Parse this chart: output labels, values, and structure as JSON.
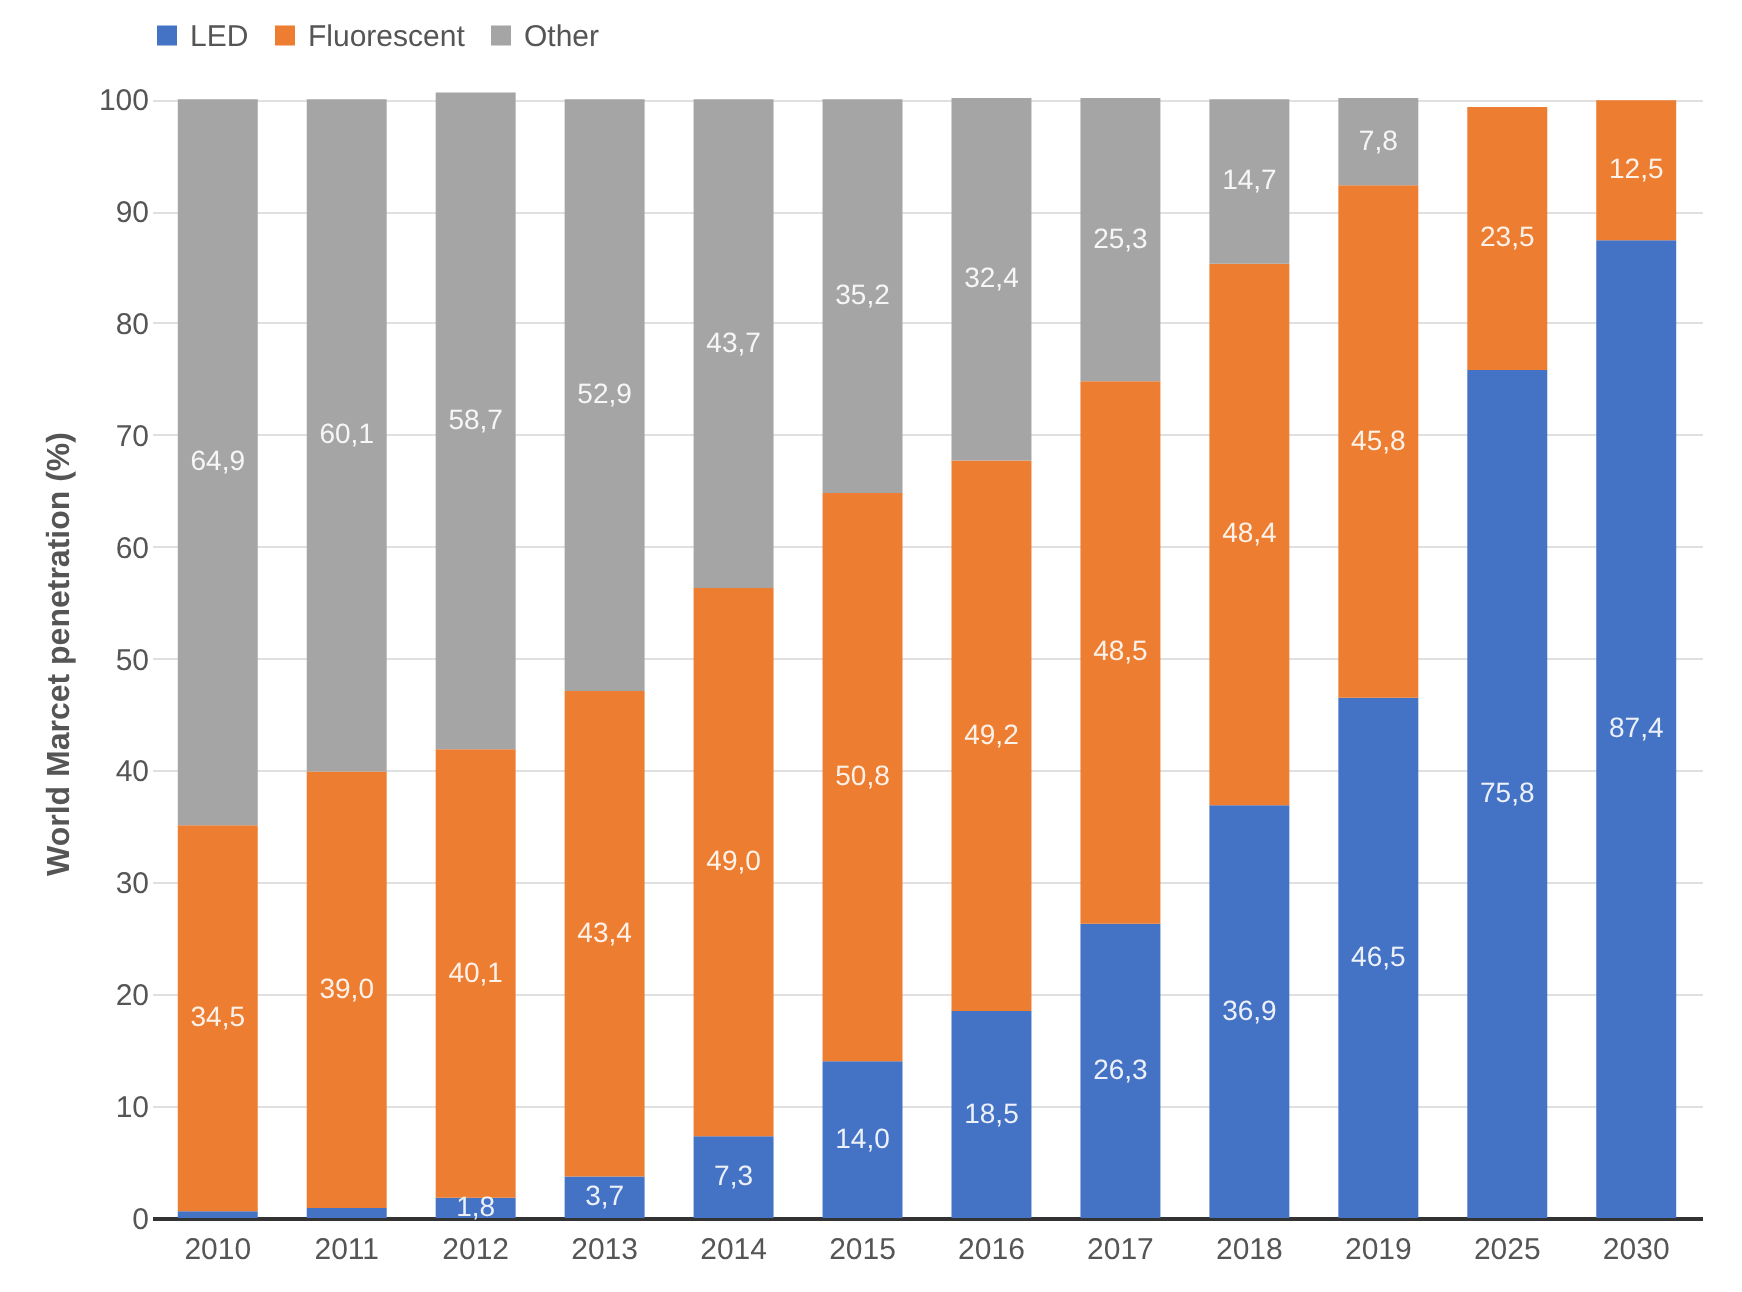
{
  "chart_data": {
    "type": "bar",
    "stacked": true,
    "ylabel": "World Marcet penetration (%)",
    "categories": [
      "2010",
      "2011",
      "2012",
      "2013",
      "2014",
      "2015",
      "2016",
      "2017",
      "2018",
      "2019",
      "2025",
      "2030"
    ],
    "series": [
      {
        "name": "LED",
        "color": "#4472c4",
        "values": [
          0.6,
          0.9,
          1.8,
          3.7,
          7.3,
          14.0,
          18.5,
          26.3,
          36.9,
          46.5,
          75.8,
          87.4
        ],
        "value_labels": [
          null,
          null,
          "1,8",
          "3,7",
          "7,3",
          "14,0",
          "18,5",
          "26,3",
          "36,9",
          "46,5",
          "75,8",
          "87,4"
        ]
      },
      {
        "name": "Fluorescent",
        "color": "#ed7d31",
        "values": [
          34.5,
          39.0,
          40.1,
          43.4,
          49.0,
          50.8,
          49.2,
          48.5,
          48.4,
          45.8,
          23.5,
          12.5
        ],
        "value_labels": [
          "34,5",
          "39,0",
          "40,1",
          "43,4",
          "49,0",
          "50,8",
          "49,2",
          "48,5",
          "48,4",
          "45,8",
          "23,5",
          "12,5"
        ]
      },
      {
        "name": "Other",
        "color": "#a5a5a5",
        "values": [
          64.9,
          60.1,
          58.7,
          52.9,
          43.7,
          35.2,
          32.4,
          25.3,
          14.7,
          7.8,
          null,
          null
        ],
        "value_labels": [
          "64,9",
          "60,1",
          "58,7",
          "52,9",
          "43,7",
          "35,2",
          "32,4",
          "25,3",
          "14,7",
          "7,8",
          null,
          null
        ]
      }
    ],
    "ylim": [
      0,
      101
    ],
    "yticks": [
      0,
      10,
      20,
      30,
      40,
      50,
      60,
      70,
      80,
      90,
      100
    ],
    "grid": "y",
    "legend": "top"
  }
}
